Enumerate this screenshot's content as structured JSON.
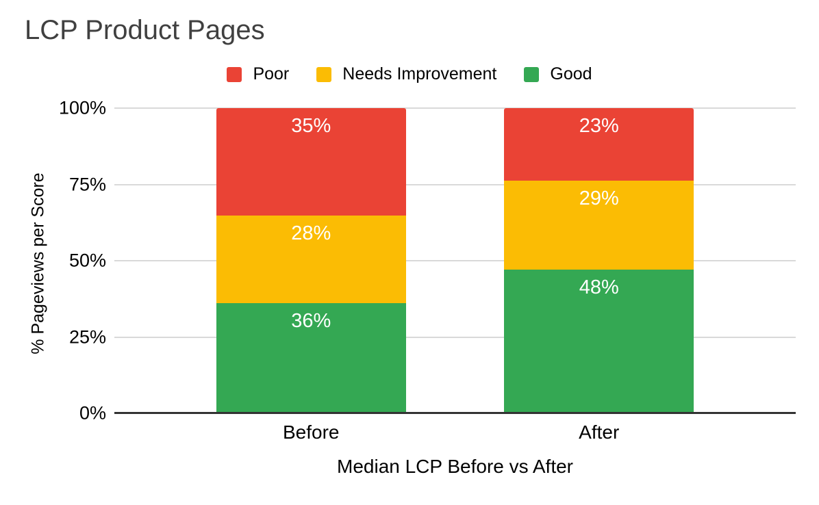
{
  "chart_data": {
    "type": "bar",
    "stacked": true,
    "title": "LCP Product Pages",
    "xlabel": "Median LCP Before vs After",
    "ylabel": "% Pageviews per Score",
    "categories": [
      "Before",
      "After"
    ],
    "series": [
      {
        "name": "Poor",
        "color": "#EA4335",
        "values": [
          35,
          23
        ]
      },
      {
        "name": "Needs Improvement",
        "color": "#FBBC04",
        "values": [
          28,
          29
        ]
      },
      {
        "name": "Good",
        "color": "#34A853",
        "values": [
          36,
          48
        ]
      }
    ],
    "value_suffix": "%",
    "y_ticks": [
      "100%",
      "75%",
      "50%",
      "25%",
      "0%"
    ],
    "ylim": [
      0,
      100
    ],
    "grid": true,
    "legend_position": "top",
    "colors": {
      "gridline": "#d9d9d9",
      "axis": "#333333",
      "title_text": "#404040",
      "tick_text": "#000000",
      "bar_label_text": "#ffffff",
      "background": "#ffffff"
    }
  }
}
